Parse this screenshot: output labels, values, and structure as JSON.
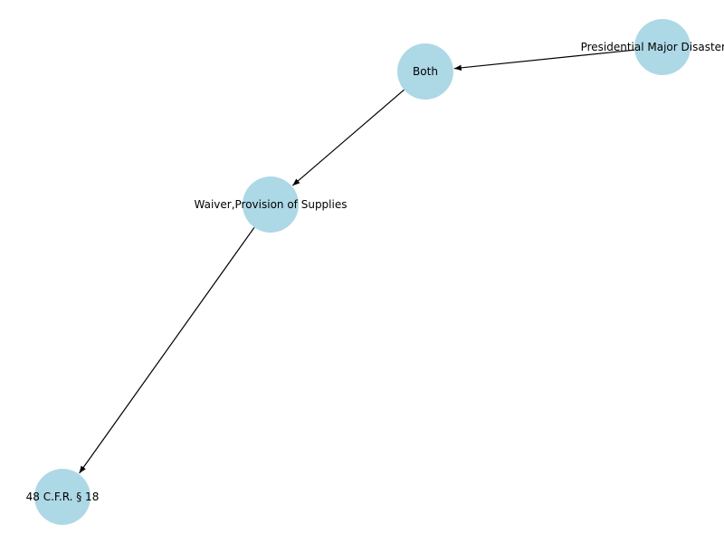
{
  "graph": {
    "node_color": "#add8e6",
    "edge_color": "#000000",
    "directed": true,
    "nodes": [
      {
        "id": "presidential",
        "label": "Presidential Major Disaster De"
      },
      {
        "id": "both",
        "label": "Both"
      },
      {
        "id": "waiver",
        "label": "Waiver,Provision of Supplies"
      },
      {
        "id": "cfr",
        "label": "48 C.F.R. § 18"
      }
    ],
    "edges": [
      {
        "from": "presidential",
        "to": "both"
      },
      {
        "from": "both",
        "to": "waiver"
      },
      {
        "from": "waiver",
        "to": "cfr"
      }
    ]
  }
}
